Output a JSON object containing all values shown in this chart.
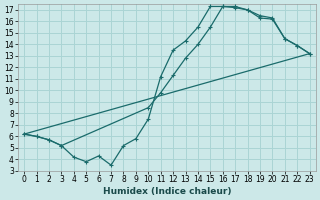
{
  "xlabel": "Humidex (Indice chaleur)",
  "xlim": [
    -0.5,
    23.5
  ],
  "ylim": [
    3,
    17.5
  ],
  "xticks": [
    0,
    1,
    2,
    3,
    4,
    5,
    6,
    7,
    8,
    9,
    10,
    11,
    12,
    13,
    14,
    15,
    16,
    17,
    18,
    19,
    20,
    21,
    22,
    23
  ],
  "yticks": [
    3,
    4,
    5,
    6,
    7,
    8,
    9,
    10,
    11,
    12,
    13,
    14,
    15,
    16,
    17
  ],
  "bg_color": "#cce8e8",
  "grid_color": "#aad4d4",
  "line_color": "#1a6b6b",
  "curve1_x": [
    0,
    1,
    2,
    3,
    4,
    5,
    6,
    7,
    8,
    9,
    10,
    11,
    12,
    13,
    14,
    15,
    16,
    17,
    18,
    19,
    20,
    21,
    22,
    23
  ],
  "curve1_y": [
    6.2,
    6.0,
    5.7,
    5.2,
    4.2,
    3.8,
    4.3,
    3.5,
    5.2,
    5.8,
    7.5,
    11.2,
    13.5,
    14.3,
    15.5,
    17.3,
    17.3,
    17.2,
    17.0,
    16.5,
    16.3,
    14.5,
    13.9,
    13.2
  ],
  "curve2_x": [
    0,
    1,
    2,
    3,
    10,
    11,
    12,
    13,
    14,
    15,
    16,
    17,
    18,
    19,
    20,
    21,
    22,
    23
  ],
  "curve2_y": [
    6.2,
    6.0,
    5.7,
    5.2,
    8.5,
    9.8,
    11.3,
    12.8,
    14.0,
    15.5,
    17.3,
    17.3,
    17.0,
    16.3,
    16.2,
    14.5,
    13.9,
    13.2
  ],
  "line3_x": [
    0,
    23
  ],
  "line3_y": [
    6.2,
    13.2
  ],
  "tick_fontsize": 5.5,
  "xlabel_fontsize": 6.5
}
